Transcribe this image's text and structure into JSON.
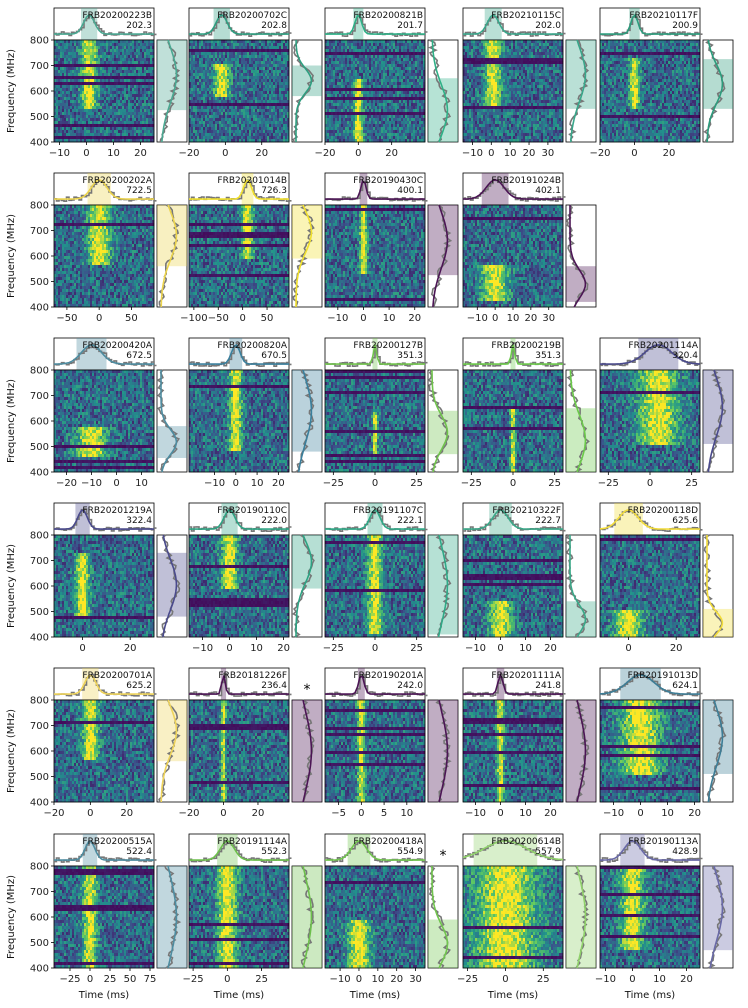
{
  "figure": {
    "ylabel": "Frequency (MHz)",
    "xlabel": "Time (ms)"
  },
  "chart_data": {
    "type": "heatmap",
    "description_axis": "dynamic spectra",
    "y_axis": {
      "label": "Frequency (MHz)",
      "range": [
        400,
        800
      ],
      "ticks": [
        400,
        500,
        600,
        700,
        800
      ]
    },
    "x_axis": {
      "label": "Time (ms)"
    },
    "panels": [
      {
        "name": "FRB20200223B",
        "dm": "202.3",
        "color": "#4aa791",
        "xlim": [
          -12,
          25
        ],
        "xticks": [
          -10,
          0,
          10,
          20
        ],
        "spectral_band": [
          525,
          800
        ],
        "pulse": 1,
        "width": 2
      },
      {
        "name": "FRB20200702C",
        "dm": "202.8",
        "color": "#2f9e80",
        "xlim": [
          -20,
          35
        ],
        "xticks": [
          -20,
          0,
          20
        ],
        "spectral_band": [
          580,
          700
        ],
        "pulse": -2,
        "width": 3
      },
      {
        "name": "FRB20200821B",
        "dm": "201.7",
        "color": "#2fb087",
        "xlim": [
          -20,
          40
        ],
        "xticks": [
          -20,
          0,
          20
        ],
        "spectral_band": [
          400,
          650
        ],
        "pulse": 0,
        "width": 2
      },
      {
        "name": "FRB20210115C",
        "dm": "202.0",
        "color": "#39a68a",
        "xlim": [
          -15,
          38
        ],
        "xticks": [
          -10,
          0,
          10,
          20,
          30
        ],
        "spectral_band": [
          530,
          800
        ],
        "pulse": 1,
        "width": 3
      },
      {
        "name": "FRB20210117F",
        "dm": "200.9",
        "color": "#2c9c7c",
        "xlim": [
          -20,
          38
        ],
        "xticks": [
          -20,
          0,
          20
        ],
        "spectral_band": [
          530,
          725
        ],
        "pulse": 0,
        "width": 2
      },
      {
        "name": "FRB20200202A",
        "dm": "722.5",
        "color": "#ecd44d",
        "xlim": [
          -70,
          85
        ],
        "xticks": [
          -50,
          0,
          50
        ],
        "spectral_band": [
          560,
          800
        ],
        "pulse": 0,
        "width": 12
      },
      {
        "name": "FRB20201014B",
        "dm": "726.3",
        "color": "#f0df2d",
        "xlim": [
          -110,
          95
        ],
        "xticks": [
          -100,
          -50,
          0,
          50
        ],
        "spectral_band": [
          590,
          800
        ],
        "pulse": 10,
        "width": 8
      },
      {
        "name": "FRB20190430C",
        "dm": "400.1",
        "color": "#4b1554",
        "xlim": [
          -15,
          24
        ],
        "xticks": [
          -10,
          0,
          10,
          20
        ],
        "spectral_band": [
          525,
          800
        ],
        "pulse": 0,
        "width": 1
      },
      {
        "name": "FRB20191024B",
        "dm": "402.1",
        "color": "#4b1554",
        "xlim": [
          -18,
          38
        ],
        "xticks": [
          -10,
          0,
          10,
          20,
          30
        ],
        "spectral_band": [
          420,
          560
        ],
        "pulse": 0,
        "width": 5
      },
      {
        "name": "FRB20200420A",
        "dm": "672.5",
        "color": "#4d8ca0",
        "xlim": [
          -25,
          15
        ],
        "xticks": [
          -20,
          -10,
          0,
          10
        ],
        "spectral_band": [
          455,
          580
        ],
        "pulse": -10,
        "width": 4
      },
      {
        "name": "FRB20200820A",
        "dm": "670.5",
        "color": "#3a7f9c",
        "xlim": [
          -22,
          25
        ],
        "xticks": [
          -10,
          0,
          10,
          20
        ],
        "spectral_band": [
          480,
          800
        ],
        "pulse": 0,
        "width": 2
      },
      {
        "name": "FRB20200127B",
        "dm": "351.3",
        "color": "#70c34c",
        "xlim": [
          -30,
          30
        ],
        "xticks": [
          -25,
          0,
          25
        ],
        "spectral_band": [
          470,
          640
        ],
        "pulse": 0,
        "width": 1
      },
      {
        "name": "FRB20200219B",
        "dm": "351.3",
        "color": "#6bc94a",
        "xlim": [
          -30,
          30
        ],
        "xticks": [
          -25,
          0,
          25
        ],
        "spectral_band": [
          400,
          650
        ],
        "pulse": 0,
        "width": 1
      },
      {
        "name": "FRB20201114A",
        "dm": "320.4",
        "color": "#4a4a8c",
        "xlim": [
          -30,
          30
        ],
        "xticks": [
          -25,
          0,
          25
        ],
        "spectral_band": [
          510,
          800
        ],
        "pulse": 5,
        "width": 8
      },
      {
        "name": "FRB20201219A",
        "dm": "322.4",
        "color": "#4a4a8c",
        "xlim": [
          -12,
          30
        ],
        "xticks": [
          0,
          20
        ],
        "spectral_band": [
          480,
          730
        ],
        "pulse": 0,
        "width": 2
      },
      {
        "name": "FRB20190110C",
        "dm": "222.0",
        "color": "#2ea383",
        "xlim": [
          -15,
          22
        ],
        "xticks": [
          -10,
          0,
          10,
          20
        ],
        "spectral_band": [
          590,
          800
        ],
        "pulse": 0,
        "width": 2
      },
      {
        "name": "FRB20191107C",
        "dm": "222.1",
        "color": "#2fa987",
        "xlim": [
          -30,
          30
        ],
        "xticks": [
          -25,
          0,
          25
        ],
        "spectral_band": [
          410,
          800
        ],
        "pulse": 0,
        "width": 3
      },
      {
        "name": "FRB20210322F",
        "dm": "222.7",
        "color": "#3aa888",
        "xlim": [
          -15,
          25
        ],
        "xticks": [
          -10,
          0,
          10,
          20
        ],
        "spectral_band": [
          400,
          540
        ],
        "pulse": 0,
        "width": 3
      },
      {
        "name": "FRB20200118D",
        "dm": "625.6",
        "color": "#f2dc3a",
        "xlim": [
          -12,
          30
        ],
        "xticks": [
          0,
          20
        ],
        "spectral_band": [
          400,
          510
        ],
        "pulse": 0,
        "width": 4
      },
      {
        "name": "FRB20200701A",
        "dm": "625.2",
        "color": "#eed35a",
        "xlim": [
          -20,
          35
        ],
        "xticks": [
          -20,
          0,
          20
        ],
        "spectral_band": [
          560,
          800
        ],
        "pulse": 0,
        "width": 3
      },
      {
        "name": "FRB20181226F",
        "dm": "236.4",
        "color": "#4b1554",
        "xlim": [
          -20,
          38
        ],
        "xticks": [
          -20,
          0,
          20
        ],
        "spectral_band": [
          400,
          800
        ],
        "pulse": 0,
        "width": 1
      },
      {
        "name": "FRB20190201A",
        "dm": "242.0",
        "color": "#4b1554",
        "xlim": [
          -8,
          14
        ],
        "xticks": [
          -5,
          0,
          5,
          10
        ],
        "spectral_band": [
          400,
          800
        ],
        "pulse": 0,
        "width": 0.5
      },
      {
        "name": "FRB20201111A",
        "dm": "241.8",
        "color": "#4b1554",
        "xlim": [
          -15,
          25
        ],
        "xticks": [
          -10,
          0,
          10,
          20
        ],
        "spectral_band": [
          400,
          800
        ],
        "pulse": 0,
        "width": 1
      },
      {
        "name": "FRB20191013D",
        "dm": "624.1",
        "color": "#3d7d96",
        "xlim": [
          -15,
          22
        ],
        "xticks": [
          -10,
          0,
          10,
          20
        ],
        "spectral_band": [
          510,
          800
        ],
        "pulse": 0,
        "width": 5
      },
      {
        "name": "FRB20200515A",
        "dm": "522.4",
        "color": "#4d8ca0",
        "xlim": [
          -45,
          80
        ],
        "xticks": [
          -25,
          0,
          25,
          50,
          75
        ],
        "spectral_band": [
          400,
          800
        ],
        "pulse": 0,
        "width": 6
      },
      {
        "name": "FRB20191114A",
        "dm": "552.3",
        "color": "#6dbf4c",
        "xlim": [
          -28,
          45
        ],
        "xticks": [
          -25,
          0,
          25
        ],
        "spectral_band": [
          400,
          800
        ],
        "pulse": 0,
        "width": 5
      },
      {
        "name": "FRB20200418A",
        "dm": "554.9",
        "color": "#71c54e",
        "xlim": [
          -18,
          35
        ],
        "xticks": [
          -10,
          0,
          10,
          20,
          30
        ],
        "spectral_band": [
          400,
          590
        ],
        "pulse": 0,
        "width": 4
      },
      {
        "name": "FRB20200614B",
        "dm": "557.9",
        "color": "#8fd16a",
        "xlim": [
          -28,
          38
        ],
        "xticks": [
          -25,
          0,
          25
        ],
        "spectral_band": [
          400,
          800
        ],
        "pulse": 0,
        "width": 14
      },
      {
        "name": "FRB20190113A",
        "dm": "428.9",
        "color": "#6a6aa8",
        "xlim": [
          -12,
          25
        ],
        "xticks": [
          -10,
          0,
          10,
          20
        ],
        "spectral_band": [
          470,
          800
        ],
        "pulse": 0,
        "width": 3
      }
    ],
    "markers": [
      {
        "text": "*",
        "after_panel": "FRB20181226F"
      },
      {
        "text": "*",
        "after_panel": "FRB20200418A"
      }
    ]
  }
}
